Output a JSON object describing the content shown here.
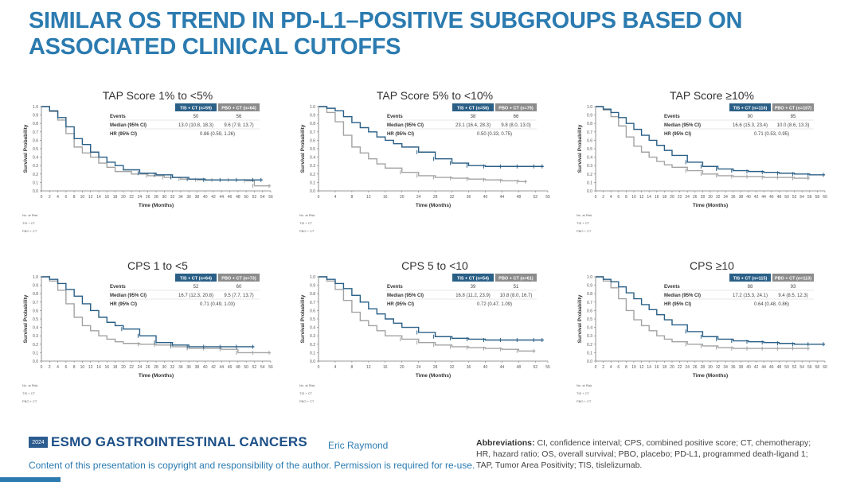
{
  "slide": {
    "title": "SIMILAR OS TREND IN PD-L1–POSITIVE SUBGROUPS BASED ON ASSOCIATED CLINICAL CUTOFFS",
    "footer_logo_badge": "2024",
    "footer_logo": "ESMO GASTROINTESTINAL CANCERS",
    "author": "Eric Raymond",
    "copyright": "Content of this presentation is copyright and responsibility of the author. Permission is required for re-use.",
    "abbreviations_label": "Abbreviations:",
    "abbreviations_text": "CI, confidence interval; CPS, combined positive score; CT, chemotherapy; HR, hazard ratio; OS, overall survival; PBO, placebo; PD-L1, programmed death-ligand 1; TAP, Tumor Area Positivity; TIS, tislelizumab."
  },
  "colors": {
    "tis": "#2a5f86",
    "pbo": "#a3a3a3",
    "title": "#2b7bb0"
  },
  "chart_data": [
    {
      "type": "line",
      "title": "TAP Score 1% to <5%",
      "ylabel": "Survival Probability",
      "xlabel": "Time (Months)",
      "xlim": [
        0,
        56
      ],
      "xticks_step": 2,
      "ylim": [
        0,
        1
      ],
      "yticks": [
        "0.0",
        "0.1",
        "0.2",
        "0.3",
        "0.4",
        "0.5",
        "0.6",
        "0.7",
        "0.8",
        "0.9",
        "1.0"
      ],
      "table": {
        "arms": [
          "TIS + CT (n=59)",
          "PBO + CT (n=64)"
        ],
        "rows": [
          {
            "label": "Events",
            "values": [
              "50",
              "56"
            ]
          },
          {
            "label": "Median (95% CI)",
            "values": [
              "13.0 (10.8, 18.3)",
              "9.6 (7.9, 13.7)"
            ]
          },
          {
            "label": "HR (95% CI)",
            "values": [
              "0.86 (0.59, 1.26)"
            ]
          }
        ]
      },
      "risk_label": "No. at Risk",
      "risk_arms": [
        "TIS + CT",
        "PBO + CT"
      ],
      "series": [
        {
          "name": "TIS + CT",
          "x": [
            0,
            2,
            4,
            6,
            8,
            10,
            12,
            14,
            16,
            18,
            20,
            24,
            28,
            32,
            36,
            40,
            44,
            48,
            52,
            54
          ],
          "y": [
            1.0,
            0.95,
            0.87,
            0.76,
            0.62,
            0.55,
            0.46,
            0.4,
            0.34,
            0.3,
            0.25,
            0.21,
            0.19,
            0.16,
            0.14,
            0.13,
            0.13,
            0.13,
            0.13,
            0.13
          ]
        },
        {
          "name": "PBO + CT",
          "x": [
            0,
            2,
            4,
            6,
            8,
            10,
            12,
            14,
            16,
            18,
            22,
            26,
            30,
            34,
            38,
            42,
            46,
            50,
            52,
            56
          ],
          "y": [
            1.0,
            0.94,
            0.84,
            0.68,
            0.52,
            0.45,
            0.4,
            0.33,
            0.28,
            0.23,
            0.2,
            0.18,
            0.16,
            0.14,
            0.13,
            0.13,
            0.13,
            0.12,
            0.06,
            0.06
          ]
        }
      ]
    },
    {
      "type": "line",
      "title": "TAP Score 5% to <10%",
      "ylabel": "Survival Probability",
      "xlabel": "Time (Months)",
      "xlim": [
        0,
        55
      ],
      "xticks": [
        0,
        4,
        8,
        12,
        16,
        20,
        24,
        28,
        32,
        36,
        40,
        44,
        48,
        52,
        55
      ],
      "ylim": [
        0,
        1
      ],
      "yticks": [
        "0.0",
        "0.1",
        "0.2",
        "0.3",
        "0.4",
        "0.5",
        "0.6",
        "0.7",
        "0.8",
        "0.9",
        "1.0"
      ],
      "table": {
        "arms": [
          "TIS + CT (n=56)",
          "PBO + CT (n=79)"
        ],
        "rows": [
          {
            "label": "Events",
            "values": [
              "38",
              "66"
            ]
          },
          {
            "label": "Median (95% CI)",
            "values": [
              "23.1 (16.4, 28.3)",
              "9.8 (8.0, 13.0)"
            ]
          },
          {
            "label": "HR (95% CI)",
            "values": [
              "0.50 (0.33, 0.75)"
            ]
          }
        ]
      },
      "risk_label": "No. at Risk",
      "risk_arms": [
        "TIS + CT",
        "PBO + CT"
      ],
      "series": [
        {
          "name": "TIS + CT",
          "x": [
            0,
            2,
            4,
            6,
            8,
            10,
            12,
            14,
            16,
            18,
            20,
            24,
            28,
            32,
            36,
            40,
            44,
            48,
            52,
            54
          ],
          "y": [
            1.0,
            0.98,
            0.95,
            0.88,
            0.81,
            0.75,
            0.7,
            0.64,
            0.6,
            0.56,
            0.52,
            0.46,
            0.38,
            0.33,
            0.3,
            0.29,
            0.29,
            0.29,
            0.29,
            0.29
          ]
        },
        {
          "name": "PBO + CT",
          "x": [
            0,
            2,
            4,
            6,
            8,
            10,
            12,
            14,
            16,
            20,
            24,
            28,
            32,
            36,
            40,
            44,
            48,
            50
          ],
          "y": [
            1.0,
            0.93,
            0.82,
            0.66,
            0.52,
            0.45,
            0.38,
            0.32,
            0.27,
            0.22,
            0.18,
            0.16,
            0.15,
            0.14,
            0.13,
            0.12,
            0.11,
            0.11
          ]
        }
      ]
    },
    {
      "type": "line",
      "title": "TAP Score ≥10%",
      "ylabel": "Survival Probability",
      "xlabel": "Time (Months)",
      "xlim": [
        0,
        60
      ],
      "xticks_step": 2,
      "ylim": [
        0,
        1
      ],
      "yticks": [
        "0.0",
        "0.1",
        "0.2",
        "0.3",
        "0.4",
        "0.5",
        "0.6",
        "0.7",
        "0.8",
        "0.9",
        "1.0"
      ],
      "table": {
        "arms": [
          "TIS + CT (n=116)",
          "PBO + CT (n=107)"
        ],
        "rows": [
          {
            "label": "Events",
            "values": [
              "90",
              "85"
            ]
          },
          {
            "label": "Median (95% CI)",
            "values": [
              "16.6 (15.3, 23.4)",
              "10.0 (8.6, 13.3)"
            ]
          },
          {
            "label": "HR (95% CI)",
            "values": [
              "0.71 (0.53, 0.95)"
            ]
          }
        ]
      },
      "risk_label": "No. at Risk",
      "risk_arms": [
        "TIS + CT",
        "PBO + CT"
      ],
      "series": [
        {
          "name": "TIS + CT",
          "x": [
            0,
            2,
            4,
            6,
            8,
            10,
            12,
            14,
            16,
            18,
            20,
            24,
            28,
            32,
            36,
            40,
            44,
            48,
            52,
            56,
            60
          ],
          "y": [
            1.0,
            0.97,
            0.93,
            0.87,
            0.8,
            0.73,
            0.66,
            0.6,
            0.54,
            0.48,
            0.42,
            0.34,
            0.29,
            0.26,
            0.24,
            0.23,
            0.22,
            0.21,
            0.2,
            0.19,
            0.19
          ]
        },
        {
          "name": "PBO + CT",
          "x": [
            0,
            2,
            4,
            6,
            8,
            10,
            12,
            14,
            16,
            18,
            20,
            24,
            28,
            32,
            36,
            40,
            44,
            48,
            52,
            56
          ],
          "y": [
            1.0,
            0.96,
            0.88,
            0.77,
            0.64,
            0.53,
            0.46,
            0.4,
            0.35,
            0.31,
            0.28,
            0.24,
            0.2,
            0.18,
            0.17,
            0.17,
            0.16,
            0.16,
            0.15,
            0.15
          ]
        }
      ]
    },
    {
      "type": "line",
      "title": "CPS 1 to <5",
      "ylabel": "Survival Probability",
      "xlabel": "Time (Months)",
      "xlim": [
        0,
        56
      ],
      "xticks_step": 2,
      "ylim": [
        0,
        1
      ],
      "yticks": [
        "0.0",
        "0.1",
        "0.2",
        "0.3",
        "0.4",
        "0.5",
        "0.6",
        "0.7",
        "0.8",
        "0.9",
        "1.0"
      ],
      "table": {
        "arms": [
          "TIS + CT (n=64)",
          "PBO + CT (n=73)"
        ],
        "rows": [
          {
            "label": "Events",
            "values": [
              "52",
              "60"
            ]
          },
          {
            "label": "Median (95% CI)",
            "values": [
              "16.7 (12.3, 20.8)",
              "9.5 (7.7, 13.7)"
            ]
          },
          {
            "label": "HR (95% CI)",
            "values": [
              "0.71 (0.49, 1.03)"
            ]
          }
        ]
      },
      "risk_label": "No. at Risk",
      "risk_arms": [
        "TIS + CT",
        "PBO + CT"
      ],
      "series": [
        {
          "name": "TIS + CT",
          "x": [
            0,
            2,
            4,
            6,
            8,
            10,
            12,
            14,
            16,
            18,
            20,
            24,
            28,
            32,
            36,
            40,
            44,
            48,
            52
          ],
          "y": [
            1.0,
            0.97,
            0.92,
            0.85,
            0.77,
            0.68,
            0.6,
            0.52,
            0.46,
            0.42,
            0.38,
            0.3,
            0.22,
            0.19,
            0.17,
            0.17,
            0.17,
            0.17,
            0.17
          ]
        },
        {
          "name": "PBO + CT",
          "x": [
            0,
            2,
            4,
            6,
            8,
            10,
            12,
            14,
            16,
            18,
            20,
            24,
            28,
            32,
            36,
            40,
            44,
            48,
            52,
            56
          ],
          "y": [
            1.0,
            0.95,
            0.84,
            0.68,
            0.52,
            0.42,
            0.36,
            0.3,
            0.26,
            0.23,
            0.21,
            0.2,
            0.19,
            0.17,
            0.15,
            0.15,
            0.14,
            0.1,
            0.1,
            0.1
          ]
        }
      ]
    },
    {
      "type": "line",
      "title": "CPS 5 to <10",
      "ylabel": "Survival Probability",
      "xlabel": "Time (Months)",
      "xlim": [
        0,
        55
      ],
      "xticks": [
        0,
        4,
        8,
        12,
        16,
        20,
        24,
        28,
        32,
        36,
        40,
        44,
        48,
        52,
        55
      ],
      "ylim": [
        0,
        1
      ],
      "yticks": [
        "0.0",
        "0.1",
        "0.2",
        "0.3",
        "0.4",
        "0.5",
        "0.6",
        "0.7",
        "0.8",
        "0.9",
        "1.0"
      ],
      "table": {
        "arms": [
          "TIS + CT (n=54)",
          "PBO + CT (n=61)"
        ],
        "rows": [
          {
            "label": "Events",
            "values": [
              "39",
              "51"
            ]
          },
          {
            "label": "Median (95% CI)",
            "values": [
              "16.8 (11.2, 23.9)",
              "10.8 (8.0, 16.7)"
            ]
          },
          {
            "label": "HR (95% CI)",
            "values": [
              "0.72 (0.47, 1.09)"
            ]
          }
        ]
      },
      "risk_label": "No. at Risk",
      "risk_arms": [
        "TIS + CT",
        "PBO + CT"
      ],
      "series": [
        {
          "name": "TIS + CT",
          "x": [
            0,
            2,
            4,
            6,
            8,
            10,
            12,
            14,
            16,
            18,
            20,
            24,
            28,
            32,
            36,
            40,
            44,
            48,
            52,
            54
          ],
          "y": [
            1.0,
            0.97,
            0.92,
            0.86,
            0.78,
            0.7,
            0.62,
            0.56,
            0.5,
            0.45,
            0.4,
            0.34,
            0.29,
            0.27,
            0.26,
            0.25,
            0.25,
            0.25,
            0.25,
            0.25
          ]
        },
        {
          "name": "PBO + CT",
          "x": [
            0,
            2,
            4,
            6,
            8,
            10,
            12,
            14,
            16,
            20,
            24,
            28,
            32,
            36,
            40,
            44,
            48,
            52
          ],
          "y": [
            1.0,
            0.95,
            0.85,
            0.72,
            0.58,
            0.48,
            0.42,
            0.36,
            0.3,
            0.26,
            0.22,
            0.19,
            0.17,
            0.16,
            0.15,
            0.14,
            0.12,
            0.12
          ]
        }
      ]
    },
    {
      "type": "line",
      "title": "CPS ≥10",
      "ylabel": "Survival Probability",
      "xlabel": "Time (Months)",
      "xlim": [
        0,
        60
      ],
      "xticks_step": 2,
      "ylim": [
        0,
        1
      ],
      "yticks": [
        "0.0",
        "0.1",
        "0.2",
        "0.3",
        "0.4",
        "0.5",
        "0.6",
        "0.7",
        "0.8",
        "0.9",
        "1.0"
      ],
      "table": {
        "arms": [
          "TIS + CT (n=115)",
          "PBO + CT (n=113)"
        ],
        "rows": [
          {
            "label": "Events",
            "values": [
              "88",
              "93"
            ]
          },
          {
            "label": "Median (95% CI)",
            "values": [
              "17.2 (15.3, 24.1)",
              "9.4 (8.5, 12.3)"
            ]
          },
          {
            "label": "HR (95% CI)",
            "values": [
              "0.64 (0.48, 0.86)"
            ]
          }
        ]
      },
      "risk_label": "No. at Risk",
      "risk_arms": [
        "TIS + CT",
        "PBO + CT"
      ],
      "series": [
        {
          "name": "TIS + CT",
          "x": [
            0,
            2,
            4,
            6,
            8,
            10,
            12,
            14,
            16,
            18,
            20,
            24,
            28,
            32,
            36,
            40,
            44,
            48,
            52,
            56,
            60
          ],
          "y": [
            1.0,
            0.97,
            0.94,
            0.88,
            0.81,
            0.74,
            0.67,
            0.61,
            0.55,
            0.49,
            0.43,
            0.35,
            0.29,
            0.26,
            0.24,
            0.23,
            0.22,
            0.21,
            0.2,
            0.2,
            0.2
          ]
        },
        {
          "name": "PBO + CT",
          "x": [
            0,
            2,
            4,
            6,
            8,
            10,
            12,
            14,
            16,
            18,
            20,
            24,
            28,
            32,
            36,
            40,
            44,
            48,
            52,
            56
          ],
          "y": [
            1.0,
            0.95,
            0.87,
            0.74,
            0.6,
            0.49,
            0.42,
            0.36,
            0.3,
            0.26,
            0.23,
            0.2,
            0.18,
            0.16,
            0.15,
            0.15,
            0.15,
            0.15,
            0.15,
            0.15
          ]
        }
      ]
    }
  ]
}
